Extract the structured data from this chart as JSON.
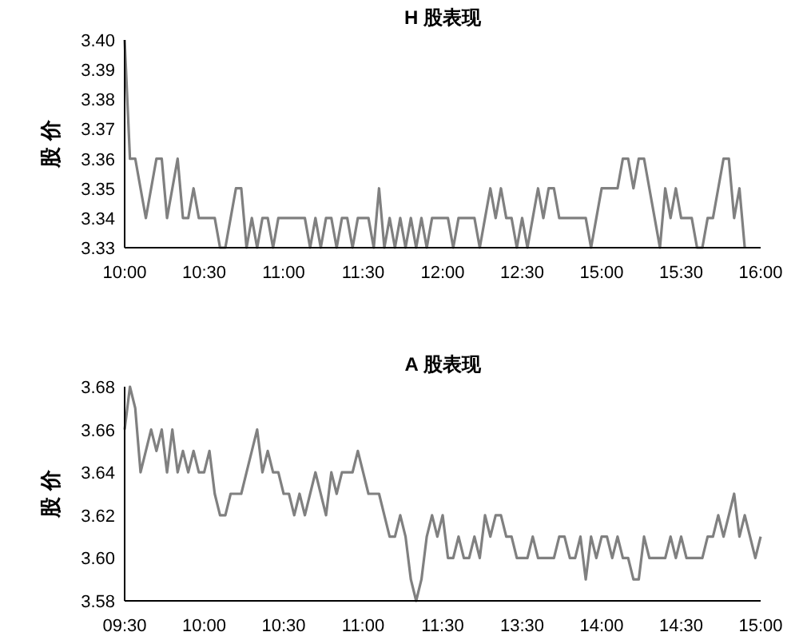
{
  "chart_data": [
    {
      "type": "line",
      "title": "H 股表现",
      "ylabel": "股 价",
      "categories": [
        "10:00",
        null,
        null,
        null,
        null,
        null,
        null,
        null,
        null,
        null,
        null,
        null,
        null,
        null,
        null,
        "10:30",
        null,
        null,
        null,
        null,
        null,
        null,
        null,
        null,
        null,
        null,
        null,
        null,
        null,
        null,
        "11:00",
        null,
        null,
        null,
        null,
        null,
        null,
        null,
        null,
        null,
        null,
        null,
        null,
        null,
        null,
        "11:30",
        null,
        null,
        null,
        null,
        null,
        null,
        null,
        null,
        null,
        null,
        null,
        null,
        null,
        null,
        "12:00",
        null,
        null,
        null,
        null,
        null,
        null,
        null,
        null,
        null,
        null,
        null,
        null,
        null,
        null,
        "12:30",
        null,
        null,
        null,
        null,
        null,
        null,
        null,
        null,
        null,
        null,
        null,
        null,
        null,
        null,
        "15:00",
        null,
        null,
        null,
        null,
        null,
        null,
        null,
        null,
        null,
        null,
        null,
        null,
        null,
        null,
        "15:30",
        null,
        null,
        null,
        null,
        null,
        null,
        null,
        null,
        null,
        null,
        null,
        null,
        null,
        null,
        "16:00"
      ],
      "ylim": [
        3.33,
        3.4
      ],
      "yticks": [
        {
          "value": 3.33,
          "label": "3.33"
        },
        {
          "value": 3.34,
          "label": "3.34"
        },
        {
          "value": 3.35,
          "label": "3.35"
        },
        {
          "value": 3.36,
          "label": "3.36"
        },
        {
          "value": 3.37,
          "label": "3.37"
        },
        {
          "value": 3.38,
          "label": "3.38"
        },
        {
          "value": 3.39,
          "label": "3.39"
        },
        {
          "value": 3.4,
          "label": "3.40"
        }
      ],
      "line_style": "solid",
      "series": [
        {
          "color": "#808080",
          "values": [
            3.4,
            3.36,
            3.36,
            3.35,
            3.34,
            3.35,
            3.36,
            3.36,
            3.34,
            3.35,
            3.36,
            3.34,
            3.34,
            3.35,
            3.34,
            3.34,
            3.34,
            3.34,
            3.33,
            3.33,
            3.34,
            3.35,
            3.35,
            3.33,
            3.34,
            3.33,
            3.34,
            3.34,
            3.33,
            3.34,
            3.34,
            3.34,
            3.34,
            3.34,
            3.34,
            3.33,
            3.34,
            3.33,
            3.34,
            3.34,
            3.33,
            3.34,
            3.34,
            3.33,
            3.34,
            3.34,
            3.34,
            3.33,
            3.35,
            3.33,
            3.34,
            3.33,
            3.34,
            3.33,
            3.34,
            3.33,
            3.34,
            3.33,
            3.34,
            3.34,
            3.34,
            3.34,
            3.33,
            3.34,
            3.34,
            3.34,
            3.34,
            3.33,
            3.34,
            3.35,
            3.34,
            3.35,
            3.34,
            3.34,
            3.33,
            3.34,
            3.33,
            3.34,
            3.35,
            3.34,
            3.35,
            3.35,
            3.34,
            3.34,
            3.34,
            3.34,
            3.34,
            3.34,
            3.33,
            3.34,
            3.35,
            3.35,
            3.35,
            3.35,
            3.36,
            3.36,
            3.35,
            3.36,
            3.36,
            3.35,
            3.34,
            3.33,
            3.35,
            3.34,
            3.35,
            3.34,
            3.34,
            3.34,
            3.33,
            3.33,
            3.34,
            3.34,
            3.35,
            3.36,
            3.36,
            3.34,
            3.35,
            3.33,
            null,
            null,
            null
          ]
        }
      ]
    },
    {
      "type": "line",
      "title": "A 股表现",
      "ylabel": "股 价",
      "categories": [
        "09:30",
        null,
        null,
        null,
        null,
        null,
        null,
        null,
        null,
        null,
        null,
        null,
        null,
        null,
        null,
        "10:00",
        null,
        null,
        null,
        null,
        null,
        null,
        null,
        null,
        null,
        null,
        null,
        null,
        null,
        null,
        "10:30",
        null,
        null,
        null,
        null,
        null,
        null,
        null,
        null,
        null,
        null,
        null,
        null,
        null,
        null,
        "11:00",
        null,
        null,
        null,
        null,
        null,
        null,
        null,
        null,
        null,
        null,
        null,
        null,
        null,
        null,
        "11:30",
        null,
        null,
        null,
        null,
        null,
        null,
        null,
        null,
        null,
        null,
        null,
        null,
        null,
        null,
        "13:30",
        null,
        null,
        null,
        null,
        null,
        null,
        null,
        null,
        null,
        null,
        null,
        null,
        null,
        null,
        "14:00",
        null,
        null,
        null,
        null,
        null,
        null,
        null,
        null,
        null,
        null,
        null,
        null,
        null,
        null,
        "14:30",
        null,
        null,
        null,
        null,
        null,
        null,
        null,
        null,
        null,
        null,
        null,
        null,
        null,
        null,
        "15:00"
      ],
      "ylim": [
        3.58,
        3.68
      ],
      "yticks": [
        {
          "value": 3.58,
          "label": "3.58"
        },
        {
          "value": 3.6,
          "label": "3.60"
        },
        {
          "value": 3.62,
          "label": "3.62"
        },
        {
          "value": 3.64,
          "label": "3.64"
        },
        {
          "value": 3.66,
          "label": "3.66"
        },
        {
          "value": 3.68,
          "label": "3.68"
        }
      ],
      "line_style": "solid",
      "series": [
        {
          "color": "#808080",
          "values": [
            3.66,
            3.68,
            3.67,
            3.64,
            3.65,
            3.66,
            3.65,
            3.66,
            3.64,
            3.66,
            3.64,
            3.65,
            3.64,
            3.65,
            3.64,
            3.64,
            3.65,
            3.63,
            3.62,
            3.62,
            3.63,
            3.63,
            3.63,
            3.64,
            3.65,
            3.66,
            3.64,
            3.65,
            3.64,
            3.64,
            3.63,
            3.63,
            3.62,
            3.63,
            3.62,
            3.63,
            3.64,
            3.63,
            3.62,
            3.64,
            3.63,
            3.64,
            3.64,
            3.64,
            3.65,
            3.64,
            3.63,
            3.63,
            3.63,
            3.62,
            3.61,
            3.61,
            3.62,
            3.61,
            3.59,
            3.58,
            3.59,
            3.61,
            3.62,
            3.61,
            3.62,
            3.6,
            3.6,
            3.61,
            3.6,
            3.6,
            3.61,
            3.6,
            3.62,
            3.61,
            3.62,
            3.62,
            3.61,
            3.61,
            3.6,
            3.6,
            3.6,
            3.61,
            3.6,
            3.6,
            3.6,
            3.6,
            3.61,
            3.61,
            3.6,
            3.6,
            3.61,
            3.59,
            3.61,
            3.6,
            3.61,
            3.61,
            3.6,
            3.61,
            3.6,
            3.6,
            3.59,
            3.59,
            3.61,
            3.6,
            3.6,
            3.6,
            3.6,
            3.61,
            3.6,
            3.61,
            3.6,
            3.6,
            3.6,
            3.6,
            3.61,
            3.61,
            3.62,
            3.61,
            3.62,
            3.63,
            3.61,
            3.62,
            3.61,
            3.6,
            3.61
          ]
        }
      ]
    }
  ]
}
